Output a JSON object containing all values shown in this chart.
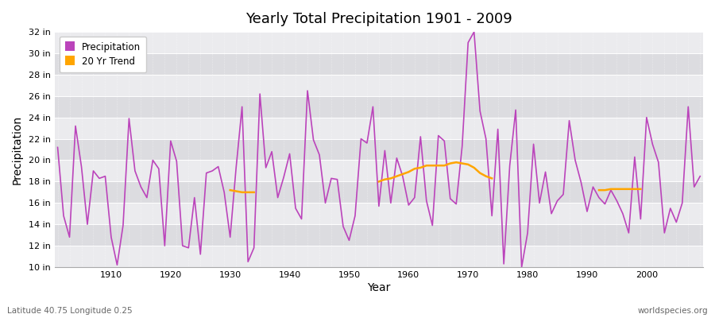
{
  "title": "Yearly Total Precipitation 1901 - 2009",
  "xlabel": "Year",
  "ylabel": "Precipitation",
  "lat_lon_label": "Latitude 40.75 Longitude 0.25",
  "source_label": "worldspecies.org",
  "precip_color": "#BB44BB",
  "trend_color": "#FFA500",
  "plot_bg_light": "#EBEBEE",
  "plot_bg_dark": "#DCDCE0",
  "fig_bg_color": "#FFFFFF",
  "ylim": [
    10,
    32
  ],
  "yticks": [
    10,
    12,
    14,
    16,
    18,
    20,
    22,
    24,
    26,
    28,
    30,
    32
  ],
  "years": [
    1901,
    1902,
    1903,
    1904,
    1905,
    1906,
    1907,
    1908,
    1909,
    1910,
    1911,
    1912,
    1913,
    1914,
    1915,
    1916,
    1917,
    1918,
    1919,
    1920,
    1921,
    1922,
    1923,
    1924,
    1925,
    1926,
    1927,
    1928,
    1929,
    1930,
    1931,
    1932,
    1933,
    1934,
    1935,
    1936,
    1937,
    1938,
    1939,
    1940,
    1941,
    1942,
    1943,
    1944,
    1945,
    1946,
    1947,
    1948,
    1949,
    1950,
    1951,
    1952,
    1953,
    1954,
    1955,
    1956,
    1957,
    1958,
    1959,
    1960,
    1961,
    1962,
    1963,
    1964,
    1965,
    1966,
    1967,
    1968,
    1969,
    1970,
    1971,
    1972,
    1973,
    1974,
    1975,
    1976,
    1977,
    1978,
    1979,
    1980,
    1981,
    1982,
    1983,
    1984,
    1985,
    1986,
    1987,
    1988,
    1989,
    1990,
    1991,
    1992,
    1993,
    1994,
    1995,
    1996,
    1997,
    1998,
    1999,
    2000,
    2001,
    2002,
    2003,
    2004,
    2005,
    2006,
    2007,
    2008,
    2009
  ],
  "precip": [
    21.2,
    14.8,
    12.8,
    23.2,
    19.4,
    14.0,
    19.0,
    18.3,
    18.5,
    12.8,
    10.2,
    13.9,
    23.9,
    19.0,
    17.5,
    16.5,
    20.0,
    19.2,
    12.0,
    21.8,
    19.9,
    12.0,
    11.8,
    16.5,
    11.2,
    18.8,
    19.0,
    19.4,
    17.0,
    12.8,
    19.3,
    25.0,
    10.5,
    11.8,
    26.2,
    19.3,
    20.8,
    16.5,
    18.4,
    20.6,
    15.5,
    14.5,
    26.5,
    21.9,
    20.5,
    16.0,
    18.3,
    18.2,
    13.8,
    12.5,
    14.8,
    22.0,
    21.6,
    25.0,
    15.7,
    20.9,
    16.0,
    20.2,
    18.5,
    15.8,
    16.5,
    22.2,
    16.2,
    13.9,
    22.3,
    21.8,
    16.4,
    15.9,
    21.3,
    31.0,
    32.0,
    24.6,
    22.0,
    14.8,
    22.9,
    10.3,
    19.5,
    24.7,
    10.0,
    13.2,
    21.5,
    16.0,
    18.9,
    15.0,
    16.2,
    16.8,
    23.7,
    20.0,
    17.9,
    15.2,
    17.5,
    16.5,
    15.9,
    17.2,
    16.2,
    15.0,
    13.2,
    20.3,
    14.5,
    24.0,
    21.5,
    19.8,
    13.2,
    15.5,
    14.2,
    16.0,
    25.0,
    17.5,
    18.5
  ],
  "trend_segments": [
    {
      "years": [
        1930,
        1931,
        1932,
        1933,
        1934
      ],
      "vals": [
        17.2,
        17.1,
        17.0,
        17.0,
        17.0
      ]
    },
    {
      "years": [
        1955,
        1956,
        1957,
        1958,
        1959,
        1960,
        1961,
        1962,
        1963,
        1964,
        1965,
        1966,
        1967,
        1968,
        1969,
        1970,
        1971,
        1972,
        1973,
        1974
      ],
      "vals": [
        18.0,
        18.2,
        18.3,
        18.5,
        18.7,
        18.9,
        19.2,
        19.3,
        19.5,
        19.5,
        19.5,
        19.5,
        19.7,
        19.8,
        19.7,
        19.6,
        19.3,
        18.8,
        18.5,
        18.3
      ]
    },
    {
      "years": [
        1992,
        1993,
        1994,
        1995,
        1996,
        1997,
        1998,
        1999
      ],
      "vals": [
        17.2,
        17.2,
        17.3,
        17.3,
        17.3,
        17.3,
        17.3,
        17.3
      ]
    }
  ]
}
